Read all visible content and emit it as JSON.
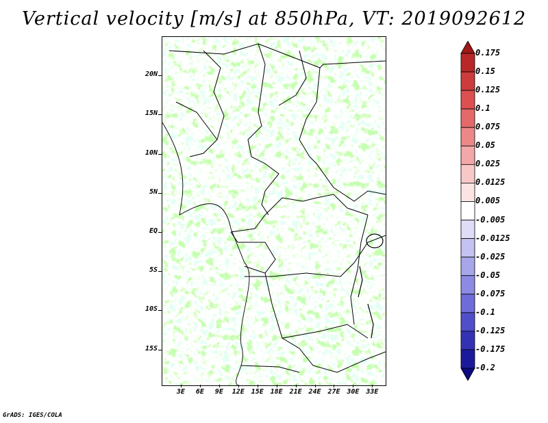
{
  "title": "Vertical velocity [m/s] at 850hPa, VT: 2019092612",
  "credit": "GrADS: IGES/COLA",
  "map": {
    "region": "Central Africa",
    "lat_labels": [
      "20N",
      "15N",
      "10N",
      "5N",
      "EQ",
      "5S",
      "10S",
      "15S"
    ],
    "lon_labels": [
      "3E",
      "6E",
      "9E",
      "12E",
      "15E",
      "18E",
      "21E",
      "24E",
      "27E",
      "30E",
      "33E"
    ],
    "lat_values": [
      20,
      15,
      10,
      5,
      0,
      -5,
      -10,
      -15
    ],
    "lon_values": [
      3,
      6,
      9,
      12,
      15,
      18,
      21,
      24,
      27,
      30,
      33
    ],
    "field": "vertical velocity",
    "units": "m/s",
    "level": "850hPa"
  },
  "colorbar": {
    "labels": [
      "0.175",
      "0.15",
      "0.125",
      "0.1",
      "0.075",
      "0.05",
      "0.025",
      "0.0125",
      "0.005",
      "-0.005",
      "-0.0125",
      "-0.025",
      "-0.05",
      "-0.075",
      "-0.1",
      "-0.125",
      "-0.175",
      "-0.2"
    ],
    "colors": [
      "#a01818",
      "#b82828",
      "#cc3c3c",
      "#dc5050",
      "#e46a6a",
      "#ec8888",
      "#f2a8a8",
      "#f8c8c8",
      "#fce4e4",
      "#ffffff",
      "#dedcf6",
      "#c4c2f0",
      "#a8a6ea",
      "#8c8ae2",
      "#6e6cd8",
      "#504ec8",
      "#3432b4",
      "#1c1a9c",
      "#0c0a80"
    ]
  }
}
